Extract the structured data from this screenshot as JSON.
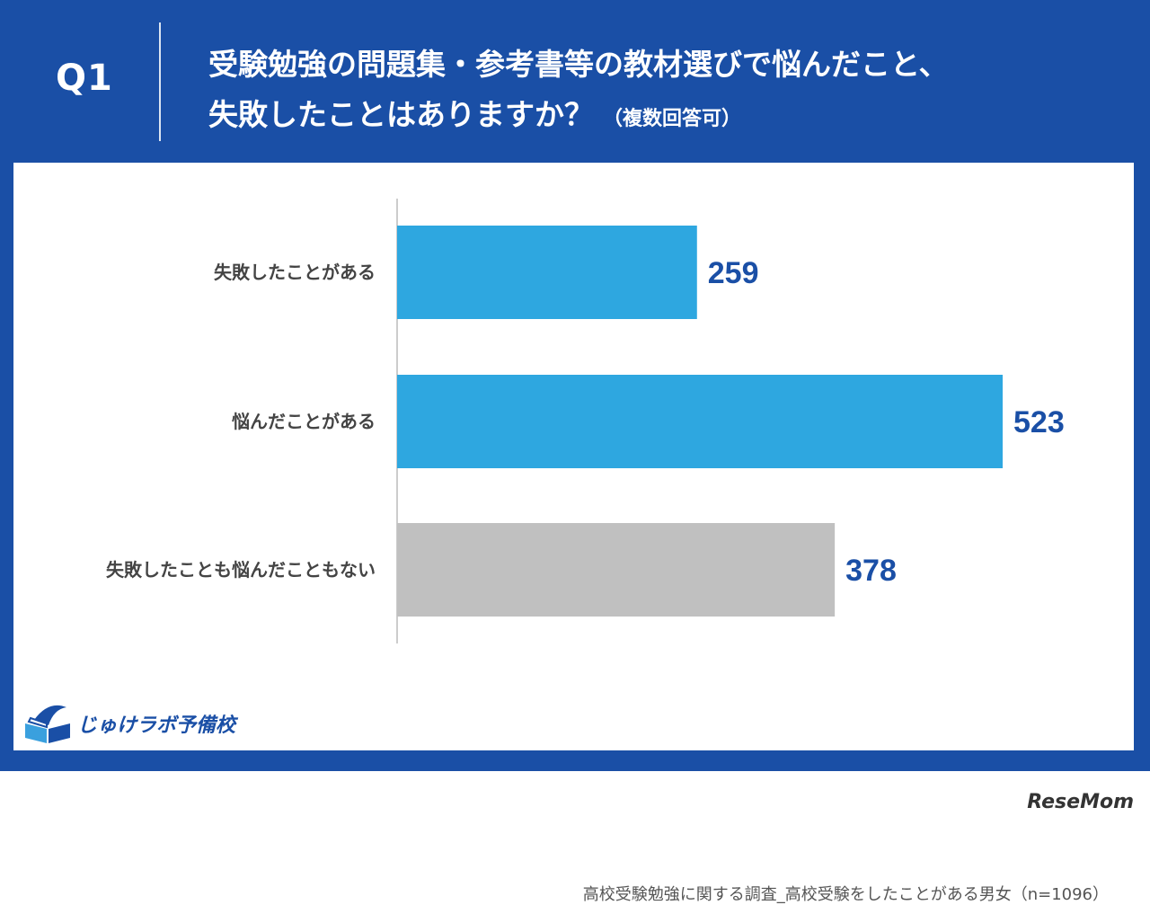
{
  "header": {
    "q_label": "Q1",
    "question_line1": "受験勉強の問題集・参考書等の教材選びで悩んだこと、",
    "question_line2": "失敗したことはありますか？",
    "question_note": "（複数回答可）"
  },
  "chart_data": {
    "type": "bar",
    "orientation": "horizontal",
    "categories": [
      "失敗したことがある",
      "悩んだことがある",
      "失敗したことも悩んだこともない"
    ],
    "values": [
      259,
      523,
      378
    ],
    "data_labels": [
      "259",
      "523",
      "378"
    ],
    "bar_colors": [
      "#2ea7e0",
      "#2ea7e0",
      "#c0c0c0"
    ],
    "label_color": "#1a4fa6",
    "xlim": [
      0,
      560
    ],
    "grid": false
  },
  "logo": {
    "text": "じゅけラボ予備校"
  },
  "footer": {
    "source": "高校受験勉強に関する調査_高校受験をしたことがある男女（n=1096）"
  },
  "watermark": {
    "text": "ReseMom"
  },
  "colors": {
    "frame": "#1a4fa6",
    "accent": "#2ea7e0",
    "gray_bar": "#c0c0c0"
  }
}
